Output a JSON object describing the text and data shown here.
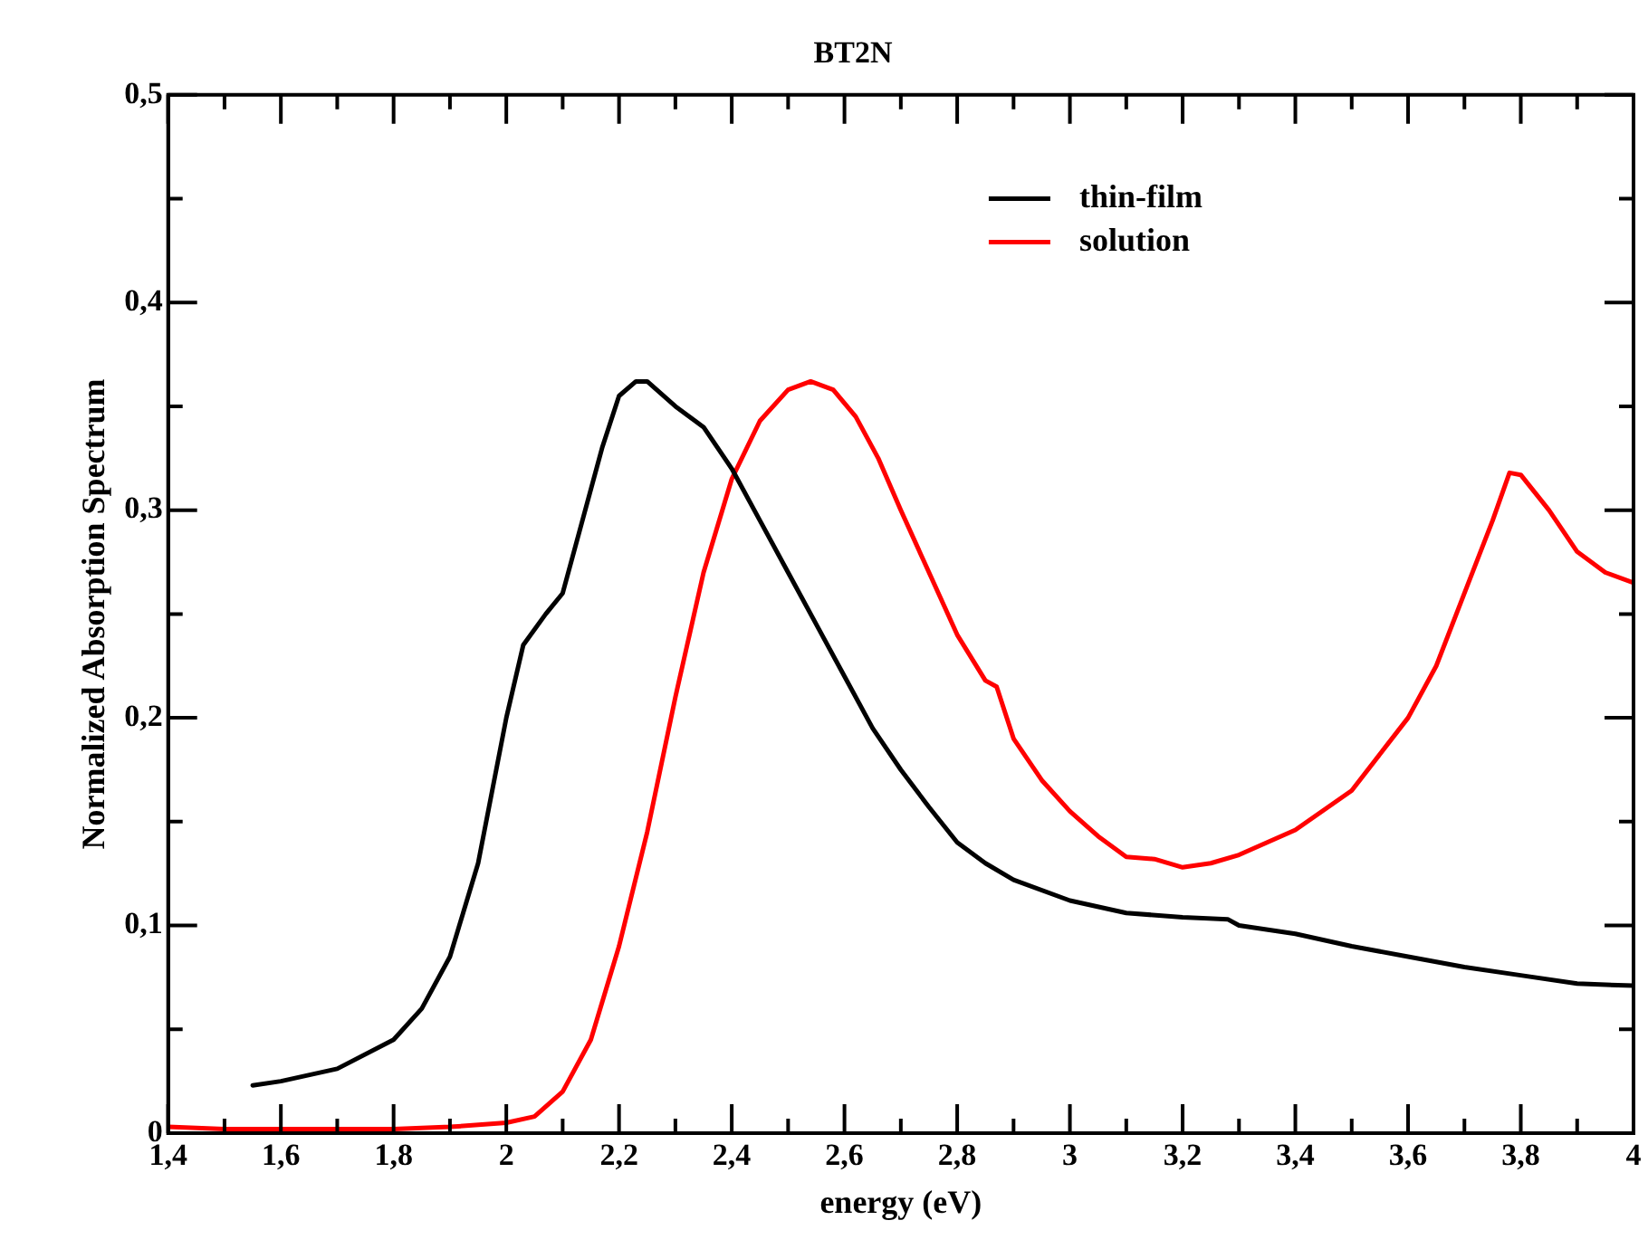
{
  "chart_data": {
    "type": "line",
    "title": "BT2N",
    "xlabel": "energy (eV)",
    "ylabel": "Normalized Absorption Spectrum",
    "xlim": [
      1.4,
      4
    ],
    "ylim": [
      0,
      0.5
    ],
    "xticks": [
      {
        "value": 1.4,
        "label": "1,4"
      },
      {
        "value": 1.5,
        "label": null
      },
      {
        "value": 1.6,
        "label": "1,6"
      },
      {
        "value": 1.7,
        "label": null
      },
      {
        "value": 1.8,
        "label": "1,8"
      },
      {
        "value": 1.9,
        "label": null
      },
      2,
      {
        "value": 2.1,
        "label": null
      },
      {
        "value": 2.2,
        "label": "2,2"
      },
      {
        "value": 2.3,
        "label": null
      },
      {
        "value": 2.4,
        "label": "2,4"
      },
      {
        "value": 2.5,
        "label": null
      },
      {
        "value": 2.6,
        "label": "2,6"
      },
      {
        "value": 2.7,
        "label": null
      },
      {
        "value": 2.8,
        "label": "2,8"
      },
      {
        "value": 2.9,
        "label": null
      },
      3,
      {
        "value": 3.1,
        "label": null
      },
      {
        "value": 3.2,
        "label": "3,2"
      },
      {
        "value": 3.3,
        "label": null
      },
      {
        "value": 3.4,
        "label": "3,4"
      },
      {
        "value": 3.5,
        "label": null
      },
      {
        "value": 3.6,
        "label": "3,6"
      },
      {
        "value": 3.7,
        "label": null
      },
      {
        "value": 3.8,
        "label": "3,8"
      },
      {
        "value": 3.9,
        "label": null
      },
      4
    ],
    "yticks": [
      0,
      {
        "value": 0.05,
        "label": null
      },
      {
        "value": 0.1,
        "label": "0,1"
      },
      {
        "value": 0.15,
        "label": null
      },
      {
        "value": 0.2,
        "label": "0,2"
      },
      {
        "value": 0.25,
        "label": null
      },
      {
        "value": 0.3,
        "label": "0,3"
      },
      {
        "value": 0.35,
        "label": null
      },
      {
        "value": 0.4,
        "label": "0,4"
      },
      {
        "value": 0.45,
        "label": null
      },
      {
        "value": 0.5,
        "label": "0,5"
      }
    ],
    "grid": false,
    "legend": "top right",
    "marker": "none",
    "line_style": "solid",
    "series": [
      {
        "name": "thin-film",
        "color": "#000000",
        "x": [
          1.55,
          1.6,
          1.7,
          1.8,
          1.85,
          1.9,
          1.95,
          2.0,
          2.03,
          2.07,
          2.1,
          2.13,
          2.17,
          2.2,
          2.23,
          2.25,
          2.3,
          2.35,
          2.4,
          2.45,
          2.5,
          2.55,
          2.6,
          2.65,
          2.7,
          2.75,
          2.8,
          2.85,
          2.9,
          3.0,
          3.1,
          3.2,
          3.28,
          3.3,
          3.4,
          3.5,
          3.6,
          3.7,
          3.8,
          3.9,
          4.0
        ],
        "values": [
          0.023,
          0.025,
          0.031,
          0.045,
          0.06,
          0.085,
          0.13,
          0.2,
          0.235,
          0.25,
          0.26,
          0.29,
          0.33,
          0.355,
          0.362,
          0.362,
          0.35,
          0.34,
          0.32,
          0.295,
          0.27,
          0.245,
          0.22,
          0.195,
          0.175,
          0.157,
          0.14,
          0.13,
          0.122,
          0.112,
          0.106,
          0.104,
          0.103,
          0.1,
          0.096,
          0.09,
          0.085,
          0.08,
          0.076,
          0.072,
          0.071
        ]
      },
      {
        "name": "solution",
        "color": "#ff0000",
        "x": [
          1.4,
          1.5,
          1.8,
          1.9,
          2.0,
          2.05,
          2.1,
          2.15,
          2.2,
          2.25,
          2.3,
          2.35,
          2.4,
          2.45,
          2.5,
          2.54,
          2.58,
          2.62,
          2.66,
          2.7,
          2.75,
          2.8,
          2.85,
          2.87,
          2.9,
          2.95,
          3.0,
          3.05,
          3.1,
          3.15,
          3.2,
          3.25,
          3.3,
          3.4,
          3.5,
          3.6,
          3.65,
          3.7,
          3.75,
          3.78,
          3.8,
          3.85,
          3.9,
          3.95,
          4.0
        ],
        "values": [
          0.003,
          0.002,
          0.002,
          0.003,
          0.005,
          0.008,
          0.02,
          0.045,
          0.09,
          0.145,
          0.21,
          0.27,
          0.315,
          0.343,
          0.358,
          0.362,
          0.358,
          0.345,
          0.325,
          0.3,
          0.27,
          0.24,
          0.218,
          0.215,
          0.19,
          0.17,
          0.155,
          0.143,
          0.133,
          0.132,
          0.128,
          0.13,
          0.134,
          0.146,
          0.165,
          0.2,
          0.225,
          0.26,
          0.295,
          0.318,
          0.317,
          0.3,
          0.28,
          0.27,
          0.265
        ]
      }
    ]
  }
}
